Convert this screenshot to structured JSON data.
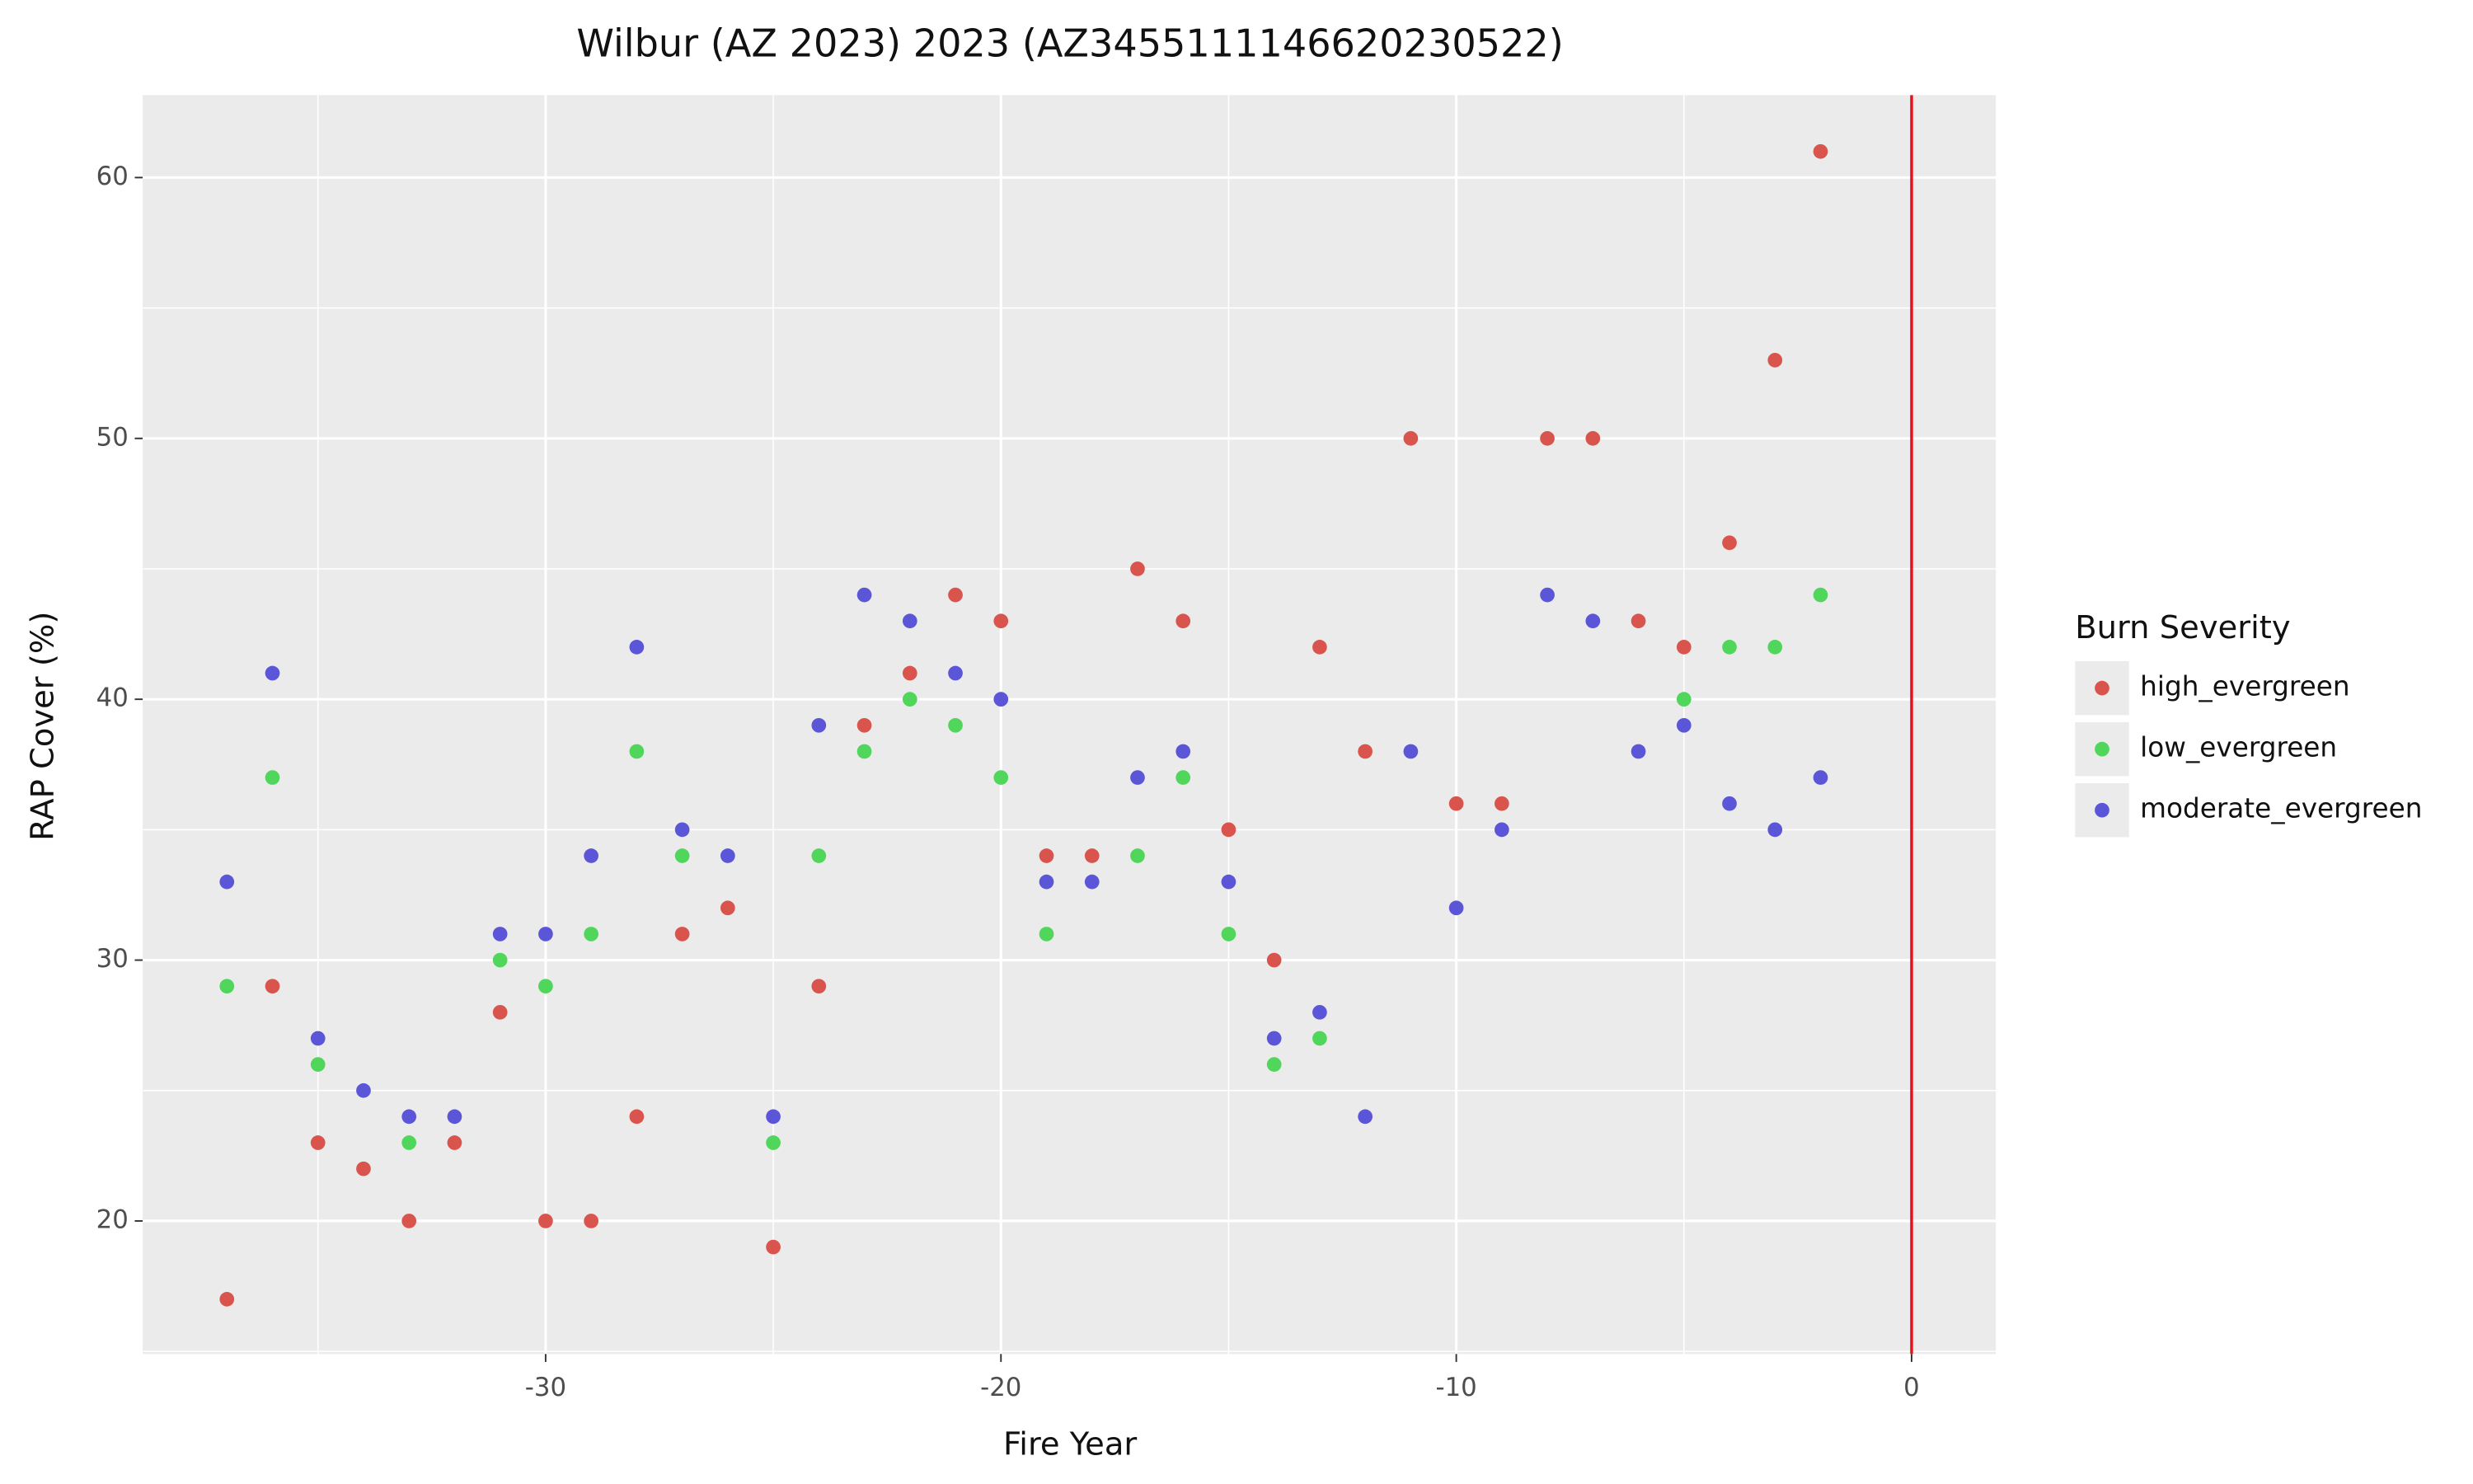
{
  "chart_data": {
    "type": "scatter",
    "title": "Wilbur (AZ 2023) 2023 (AZ3455111146620230522)",
    "x_label": "Fire Year",
    "y_label": "RAP Cover (%)",
    "legend_title": "Burn Severity",
    "legend_position": "right",
    "xlim": [
      -38.85,
      1.85
    ],
    "ylim": [
      14.9,
      63.16
    ],
    "xticks": [
      -30,
      -20,
      -10,
      0
    ],
    "yticks": [
      20,
      30,
      40,
      50,
      60
    ],
    "grid": true,
    "vline_x": 0,
    "vline_color": "#e3121b",
    "series": [
      {
        "name": "high_evergreen",
        "color": "#d9544d",
        "x": [
          -37,
          -36,
          -35,
          -34,
          -33,
          -32,
          -31,
          -30,
          -29,
          -28,
          -27,
          -26,
          -25,
          -24,
          -23,
          -22,
          -21,
          -20,
          -19,
          -18,
          -17,
          -16,
          -15,
          -14,
          -13,
          -12,
          -11,
          -10,
          -9,
          -8,
          -7,
          -6,
          -5,
          -4,
          -3,
          -2
        ],
        "values": [
          17,
          29,
          23,
          22,
          20,
          23,
          28,
          20,
          20,
          24,
          31,
          32,
          19,
          29,
          39,
          41,
          44,
          43,
          34,
          34,
          45,
          43,
          35,
          30,
          42,
          38,
          50,
          36,
          36,
          50,
          50,
          43,
          42,
          46,
          53,
          61
        ]
      },
      {
        "name": "low_evergreen",
        "color": "#4fd65b",
        "x": [
          -37,
          -36,
          -35,
          -33,
          -31,
          -30,
          -29,
          -28,
          -27,
          -25,
          -24,
          -23,
          -22,
          -21,
          -20,
          -19,
          -17,
          -16,
          -15,
          -14,
          -13,
          -5,
          -4,
          -3,
          -2
        ],
        "values": [
          29,
          37,
          26,
          23,
          30,
          29,
          31,
          38,
          34,
          23,
          34,
          38,
          40,
          39,
          37,
          31,
          34,
          37,
          31,
          26,
          27,
          40,
          42,
          42,
          44
        ]
      },
      {
        "name": "moderate_evergreen",
        "color": "#5b55d8",
        "x": [
          -37,
          -36,
          -35,
          -34,
          -33,
          -32,
          -31,
          -30,
          -29,
          -28,
          -27,
          -26,
          -25,
          -24,
          -23,
          -22,
          -21,
          -20,
          -19,
          -18,
          -17,
          -16,
          -15,
          -14,
          -13,
          -12,
          -11,
          -10,
          -9,
          -8,
          -7,
          -6,
          -5,
          -4,
          -3,
          -2
        ],
        "values": [
          33,
          41,
          27,
          25,
          24,
          24,
          31,
          31,
          34,
          42,
          35,
          34,
          24,
          39,
          44,
          43,
          41,
          40,
          33,
          33,
          37,
          38,
          33,
          27,
          28,
          24,
          38,
          32,
          35,
          44,
          43,
          38,
          39,
          36,
          35,
          37
        ]
      }
    ]
  }
}
